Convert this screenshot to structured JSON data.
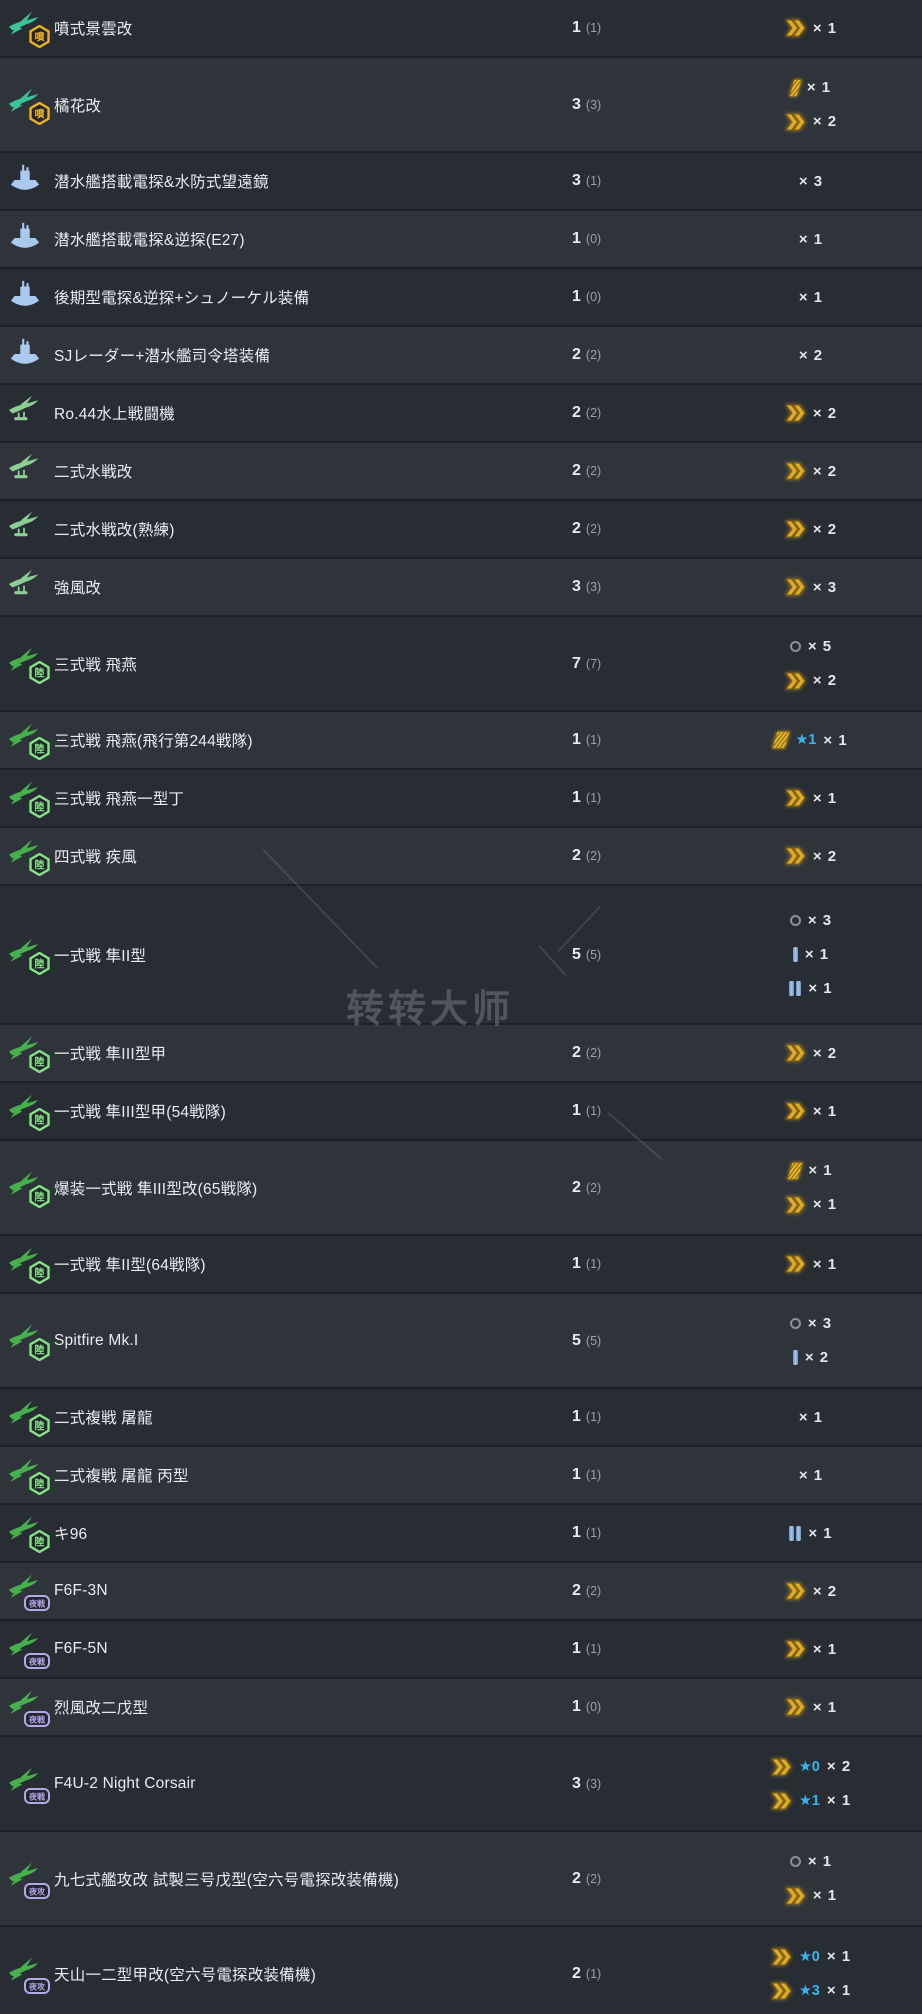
{
  "watermark": {
    "text": "转转大师"
  },
  "colors": {
    "row_dark": "#282c33",
    "row_light": "#2f343b",
    "name_text": "#e9ecef",
    "count_paren": "#9aa0a8",
    "star_blue": "#3ab2f2",
    "proficiency_gold": "#dfaa28",
    "proficiency_blue": "#84abd8",
    "proficiency_gray": "#8b9197"
  },
  "icon_types": {
    "jet": {
      "label": "jet-aircraft-icon",
      "plane_color": "#3cc39a",
      "badge_text": "噴",
      "badge_color": "#eab225",
      "badge_shape": "hexagon"
    },
    "submarine": {
      "label": "submarine-equipment-icon",
      "plane_color": "#a9c9ee",
      "badge_text": "",
      "badge_color": "",
      "badge_shape": "none"
    },
    "seaplane": {
      "label": "seaplane-fighter-icon",
      "plane_color": "#8ccf92",
      "badge_text": "",
      "badge_color": "",
      "badge_shape": "none"
    },
    "land": {
      "label": "land-based-fighter-icon",
      "plane_color": "#46b14c",
      "badge_text": "陸",
      "badge_color": "#85e285",
      "badge_shape": "hexagon"
    },
    "nightfighter": {
      "label": "night-fighter-icon",
      "plane_color": "#46b14c",
      "badge_text": "夜戦",
      "badge_color": "#b3a8e8",
      "badge_shape": "rect"
    },
    "nightattacker": {
      "label": "night-attacker-icon",
      "plane_color": "#46b14c",
      "badge_text": "夜攻",
      "badge_color": "#b3a8e8",
      "badge_shape": "rect"
    }
  },
  "rows": [
    {
      "icon": "jet",
      "name": "噴式景雲改",
      "count": "1",
      "count_paren": "(1)",
      "shade": "dark",
      "profs": [
        {
          "glyph": "chevron",
          "star": null,
          "mult": "× 1"
        }
      ]
    },
    {
      "icon": "jet",
      "name": "橘花改",
      "count": "3",
      "count_paren": "(3)",
      "shade": "light",
      "profs": [
        {
          "glyph": "slash-1",
          "star": null,
          "mult": "× 1"
        },
        {
          "glyph": "chevron",
          "star": null,
          "mult": "× 2"
        }
      ]
    },
    {
      "icon": "submarine",
      "name": "潜水艦搭載電探&水防式望遠鏡",
      "count": "3",
      "count_paren": "(1)",
      "shade": "dark",
      "profs": [
        {
          "glyph": "none",
          "star": null,
          "mult": "× 3"
        }
      ]
    },
    {
      "icon": "submarine",
      "name": "潜水艦搭載電探&逆探(E27)",
      "count": "1",
      "count_paren": "(0)",
      "shade": "light",
      "profs": [
        {
          "glyph": "none",
          "star": null,
          "mult": "× 1"
        }
      ]
    },
    {
      "icon": "submarine",
      "name": "後期型電探&逆探+シュノーケル装備",
      "count": "1",
      "count_paren": "(0)",
      "shade": "dark",
      "profs": [
        {
          "glyph": "none",
          "star": null,
          "mult": "× 1"
        }
      ]
    },
    {
      "icon": "submarine",
      "name": "SJレーダー+潜水艦司令塔装備",
      "count": "2",
      "count_paren": "(2)",
      "shade": "light",
      "profs": [
        {
          "glyph": "none",
          "star": null,
          "mult": "× 2"
        }
      ]
    },
    {
      "icon": "seaplane",
      "name": "Ro.44水上戦闘機",
      "count": "2",
      "count_paren": "(2)",
      "shade": "dark",
      "profs": [
        {
          "glyph": "chevron",
          "star": null,
          "mult": "× 2"
        }
      ]
    },
    {
      "icon": "seaplane",
      "name": "二式水戦改",
      "count": "2",
      "count_paren": "(2)",
      "shade": "light",
      "profs": [
        {
          "glyph": "chevron",
          "star": null,
          "mult": "× 2"
        }
      ]
    },
    {
      "icon": "seaplane",
      "name": "二式水戦改(熟練)",
      "count": "2",
      "count_paren": "(2)",
      "shade": "dark",
      "profs": [
        {
          "glyph": "chevron",
          "star": null,
          "mult": "× 2"
        }
      ]
    },
    {
      "icon": "seaplane",
      "name": "強風改",
      "count": "3",
      "count_paren": "(3)",
      "shade": "light",
      "profs": [
        {
          "glyph": "chevron",
          "star": null,
          "mult": "× 3"
        }
      ]
    },
    {
      "icon": "land",
      "name": "三式戦 飛燕",
      "count": "7",
      "count_paren": "(7)",
      "shade": "dark",
      "profs": [
        {
          "glyph": "circle",
          "star": null,
          "mult": "× 5"
        },
        {
          "glyph": "chevron",
          "star": null,
          "mult": "× 2"
        }
      ]
    },
    {
      "icon": "land",
      "name": "三式戦 飛燕(飛行第244戦隊)",
      "count": "1",
      "count_paren": "(1)",
      "shade": "light",
      "profs": [
        {
          "glyph": "slash-3",
          "star": "★1",
          "mult": "× 1"
        }
      ]
    },
    {
      "icon": "land",
      "name": "三式戦 飛燕一型丁",
      "count": "1",
      "count_paren": "(1)",
      "shade": "dark",
      "profs": [
        {
          "glyph": "chevron",
          "star": null,
          "mult": "× 1"
        }
      ]
    },
    {
      "icon": "land",
      "name": "四式戦 疾風",
      "count": "2",
      "count_paren": "(2)",
      "shade": "light",
      "profs": [
        {
          "glyph": "chevron",
          "star": null,
          "mult": "× 2"
        }
      ]
    },
    {
      "icon": "land",
      "name": "一式戦 隼II型",
      "count": "5",
      "count_paren": "(5)",
      "shade": "dark",
      "profs": [
        {
          "glyph": "circle",
          "star": null,
          "mult": "× 3"
        },
        {
          "glyph": "bar-1",
          "star": null,
          "mult": "× 1"
        },
        {
          "glyph": "bar-2",
          "star": null,
          "mult": "× 1"
        }
      ]
    },
    {
      "icon": "land",
      "name": "一式戦 隼III型甲",
      "count": "2",
      "count_paren": "(2)",
      "shade": "light",
      "profs": [
        {
          "glyph": "chevron",
          "star": null,
          "mult": "× 2"
        }
      ]
    },
    {
      "icon": "land",
      "name": "一式戦 隼III型甲(54戦隊)",
      "count": "1",
      "count_paren": "(1)",
      "shade": "dark",
      "profs": [
        {
          "glyph": "chevron",
          "star": null,
          "mult": "× 1"
        }
      ]
    },
    {
      "icon": "land",
      "name": "爆装一式戦 隼III型改(65戦隊)",
      "count": "2",
      "count_paren": "(2)",
      "shade": "light",
      "profs": [
        {
          "glyph": "slash-2",
          "star": null,
          "mult": "× 1"
        },
        {
          "glyph": "chevron",
          "star": null,
          "mult": "× 1"
        }
      ]
    },
    {
      "icon": "land",
      "name": "一式戦 隼II型(64戦隊)",
      "count": "1",
      "count_paren": "(1)",
      "shade": "dark",
      "profs": [
        {
          "glyph": "chevron",
          "star": null,
          "mult": "× 1"
        }
      ]
    },
    {
      "icon": "land",
      "name": "Spitfire Mk.I",
      "count": "5",
      "count_paren": "(5)",
      "shade": "light",
      "profs": [
        {
          "glyph": "circle",
          "star": null,
          "mult": "× 3"
        },
        {
          "glyph": "bar-1",
          "star": null,
          "mult": "× 2"
        }
      ]
    },
    {
      "icon": "land",
      "name": "二式複戦 屠龍",
      "count": "1",
      "count_paren": "(1)",
      "shade": "dark",
      "profs": [
        {
          "glyph": "none",
          "star": null,
          "mult": "× 1"
        }
      ]
    },
    {
      "icon": "land",
      "name": "二式複戦 屠龍 丙型",
      "count": "1",
      "count_paren": "(1)",
      "shade": "light",
      "profs": [
        {
          "glyph": "none",
          "star": null,
          "mult": "× 1"
        }
      ]
    },
    {
      "icon": "land",
      "name": "キ96",
      "count": "1",
      "count_paren": "(1)",
      "shade": "dark",
      "profs": [
        {
          "glyph": "bar-2",
          "star": null,
          "mult": "× 1"
        }
      ]
    },
    {
      "icon": "nightfighter",
      "name": "F6F-3N",
      "count": "2",
      "count_paren": "(2)",
      "shade": "light",
      "profs": [
        {
          "glyph": "chevron",
          "star": null,
          "mult": "× 2"
        }
      ]
    },
    {
      "icon": "nightfighter",
      "name": "F6F-5N",
      "count": "1",
      "count_paren": "(1)",
      "shade": "dark",
      "profs": [
        {
          "glyph": "chevron",
          "star": null,
          "mult": "× 1"
        }
      ]
    },
    {
      "icon": "nightfighter",
      "name": "烈風改二戊型",
      "count": "1",
      "count_paren": "(0)",
      "shade": "light",
      "profs": [
        {
          "glyph": "chevron",
          "star": null,
          "mult": "× 1"
        }
      ]
    },
    {
      "icon": "nightfighter",
      "name": "F4U-2 Night Corsair",
      "count": "3",
      "count_paren": "(3)",
      "shade": "dark",
      "profs": [
        {
          "glyph": "chevron",
          "star": "★0",
          "mult": "× 2"
        },
        {
          "glyph": "chevron",
          "star": "★1",
          "mult": "× 1"
        }
      ]
    },
    {
      "icon": "nightattacker",
      "name": "九七式艦攻改 試製三号戊型(空六号電探改装備機)",
      "count": "2",
      "count_paren": "(2)",
      "shade": "light",
      "profs": [
        {
          "glyph": "circle",
          "star": null,
          "mult": "× 1"
        },
        {
          "glyph": "chevron",
          "star": null,
          "mult": "× 1"
        }
      ]
    },
    {
      "icon": "nightattacker",
      "name": "天山一二型甲改(空六号電探改装備機)",
      "count": "2",
      "count_paren": "(1)",
      "shade": "dark",
      "profs": [
        {
          "glyph": "chevron",
          "star": "★0",
          "mult": "× 1"
        },
        {
          "glyph": "chevron",
          "star": "★3",
          "mult": "× 1"
        }
      ]
    }
  ]
}
